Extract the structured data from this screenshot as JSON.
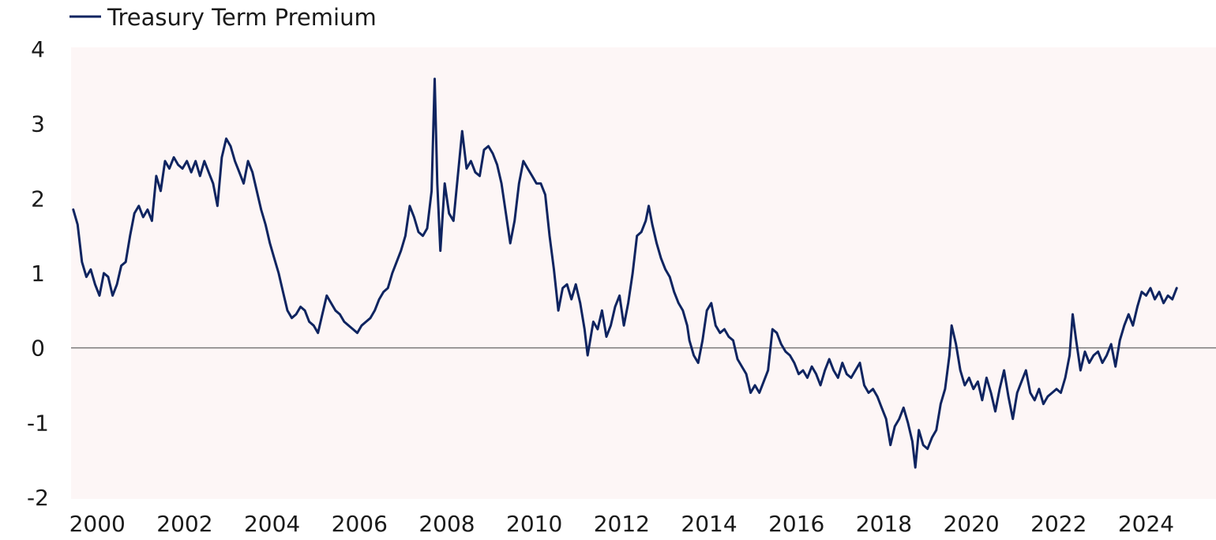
{
  "colors": {
    "line": "#0f2460",
    "plot_background": "#fdf6f6",
    "zero_line": "#7a7a7a",
    "text": "#1a1a1a"
  },
  "chart_data": {
    "type": "line",
    "title": "",
    "xlabel": "",
    "ylabel": "",
    "xlim": [
      1999.4,
      2025.6
    ],
    "ylim": [
      -2,
      4
    ],
    "xticks": [
      2000,
      2002,
      2004,
      2006,
      2008,
      2010,
      2012,
      2014,
      2016,
      2018,
      2020,
      2022,
      2024
    ],
    "yticks": [
      -2,
      -1,
      0,
      1,
      2,
      3,
      4
    ],
    "grid": false,
    "zero_line": true,
    "legend": {
      "position": "top-left"
    },
    "series": [
      {
        "name": "Treasury Term Premium",
        "points": [
          [
            1999.45,
            1.85
          ],
          [
            1999.55,
            1.65
          ],
          [
            1999.65,
            1.15
          ],
          [
            1999.75,
            0.95
          ],
          [
            1999.85,
            1.05
          ],
          [
            1999.95,
            0.85
          ],
          [
            2000.05,
            0.7
          ],
          [
            2000.15,
            1.0
          ],
          [
            2000.25,
            0.95
          ],
          [
            2000.35,
            0.7
          ],
          [
            2000.45,
            0.85
          ],
          [
            2000.55,
            1.1
          ],
          [
            2000.65,
            1.15
          ],
          [
            2000.75,
            1.5
          ],
          [
            2000.85,
            1.8
          ],
          [
            2000.95,
            1.9
          ],
          [
            2001.05,
            1.75
          ],
          [
            2001.15,
            1.85
          ],
          [
            2001.25,
            1.7
          ],
          [
            2001.35,
            2.3
          ],
          [
            2001.45,
            2.1
          ],
          [
            2001.55,
            2.5
          ],
          [
            2001.65,
            2.4
          ],
          [
            2001.75,
            2.55
          ],
          [
            2001.85,
            2.45
          ],
          [
            2001.95,
            2.4
          ],
          [
            2002.05,
            2.5
          ],
          [
            2002.15,
            2.35
          ],
          [
            2002.25,
            2.5
          ],
          [
            2002.35,
            2.3
          ],
          [
            2002.45,
            2.5
          ],
          [
            2002.55,
            2.35
          ],
          [
            2002.65,
            2.2
          ],
          [
            2002.75,
            1.9
          ],
          [
            2002.85,
            2.55
          ],
          [
            2002.95,
            2.8
          ],
          [
            2003.05,
            2.7
          ],
          [
            2003.15,
            2.5
          ],
          [
            2003.25,
            2.35
          ],
          [
            2003.35,
            2.2
          ],
          [
            2003.45,
            2.5
          ],
          [
            2003.55,
            2.35
          ],
          [
            2003.65,
            2.1
          ],
          [
            2003.75,
            1.85
          ],
          [
            2003.85,
            1.65
          ],
          [
            2003.95,
            1.4
          ],
          [
            2004.05,
            1.2
          ],
          [
            2004.15,
            1.0
          ],
          [
            2004.25,
            0.75
          ],
          [
            2004.35,
            0.5
          ],
          [
            2004.45,
            0.4
          ],
          [
            2004.55,
            0.45
          ],
          [
            2004.65,
            0.55
          ],
          [
            2004.75,
            0.5
          ],
          [
            2004.85,
            0.35
          ],
          [
            2004.95,
            0.3
          ],
          [
            2005.05,
            0.2
          ],
          [
            2005.15,
            0.45
          ],
          [
            2005.25,
            0.7
          ],
          [
            2005.35,
            0.6
          ],
          [
            2005.45,
            0.5
          ],
          [
            2005.55,
            0.45
          ],
          [
            2005.65,
            0.35
          ],
          [
            2005.75,
            0.3
          ],
          [
            2005.85,
            0.25
          ],
          [
            2005.95,
            0.2
          ],
          [
            2006.05,
            0.3
          ],
          [
            2006.15,
            0.35
          ],
          [
            2006.25,
            0.4
          ],
          [
            2006.35,
            0.5
          ],
          [
            2006.45,
            0.65
          ],
          [
            2006.55,
            0.75
          ],
          [
            2006.65,
            0.8
          ],
          [
            2006.75,
            1.0
          ],
          [
            2006.85,
            1.15
          ],
          [
            2006.95,
            1.3
          ],
          [
            2007.05,
            1.5
          ],
          [
            2007.15,
            1.9
          ],
          [
            2007.25,
            1.75
          ],
          [
            2007.35,
            1.55
          ],
          [
            2007.45,
            1.5
          ],
          [
            2007.55,
            1.6
          ],
          [
            2007.65,
            2.1
          ],
          [
            2007.72,
            3.6
          ],
          [
            2007.78,
            2.2
          ],
          [
            2007.85,
            1.3
          ],
          [
            2007.95,
            2.2
          ],
          [
            2008.05,
            1.8
          ],
          [
            2008.15,
            1.7
          ],
          [
            2008.25,
            2.3
          ],
          [
            2008.35,
            2.9
          ],
          [
            2008.45,
            2.4
          ],
          [
            2008.55,
            2.5
          ],
          [
            2008.65,
            2.35
          ],
          [
            2008.75,
            2.3
          ],
          [
            2008.85,
            2.65
          ],
          [
            2008.95,
            2.7
          ],
          [
            2009.05,
            2.6
          ],
          [
            2009.15,
            2.45
          ],
          [
            2009.25,
            2.2
          ],
          [
            2009.35,
            1.8
          ],
          [
            2009.45,
            1.4
          ],
          [
            2009.55,
            1.7
          ],
          [
            2009.65,
            2.2
          ],
          [
            2009.75,
            2.5
          ],
          [
            2009.85,
            2.4
          ],
          [
            2009.95,
            2.3
          ],
          [
            2010.05,
            2.2
          ],
          [
            2010.15,
            2.2
          ],
          [
            2010.25,
            2.05
          ],
          [
            2010.35,
            1.5
          ],
          [
            2010.45,
            1.05
          ],
          [
            2010.55,
            0.5
          ],
          [
            2010.65,
            0.8
          ],
          [
            2010.75,
            0.85
          ],
          [
            2010.85,
            0.65
          ],
          [
            2010.95,
            0.85
          ],
          [
            2011.05,
            0.6
          ],
          [
            2011.15,
            0.25
          ],
          [
            2011.22,
            -0.1
          ],
          [
            2011.35,
            0.35
          ],
          [
            2011.45,
            0.25
          ],
          [
            2011.55,
            0.5
          ],
          [
            2011.65,
            0.15
          ],
          [
            2011.75,
            0.3
          ],
          [
            2011.85,
            0.55
          ],
          [
            2011.95,
            0.7
          ],
          [
            2012.05,
            0.3
          ],
          [
            2012.15,
            0.6
          ],
          [
            2012.25,
            1.0
          ],
          [
            2012.35,
            1.5
          ],
          [
            2012.45,
            1.55
          ],
          [
            2012.55,
            1.7
          ],
          [
            2012.62,
            1.9
          ],
          [
            2012.7,
            1.65
          ],
          [
            2012.8,
            1.4
          ],
          [
            2012.9,
            1.2
          ],
          [
            2013.0,
            1.05
          ],
          [
            2013.1,
            0.95
          ],
          [
            2013.2,
            0.75
          ],
          [
            2013.3,
            0.6
          ],
          [
            2013.4,
            0.5
          ],
          [
            2013.5,
            0.3
          ],
          [
            2013.55,
            0.1
          ],
          [
            2013.65,
            -0.1
          ],
          [
            2013.75,
            -0.2
          ],
          [
            2013.85,
            0.1
          ],
          [
            2013.95,
            0.5
          ],
          [
            2014.05,
            0.6
          ],
          [
            2014.15,
            0.3
          ],
          [
            2014.25,
            0.2
          ],
          [
            2014.35,
            0.25
          ],
          [
            2014.45,
            0.15
          ],
          [
            2014.55,
            0.1
          ],
          [
            2014.65,
            -0.15
          ],
          [
            2014.75,
            -0.25
          ],
          [
            2014.85,
            -0.35
          ],
          [
            2014.95,
            -0.6
          ],
          [
            2015.05,
            -0.5
          ],
          [
            2015.15,
            -0.6
          ],
          [
            2015.25,
            -0.45
          ],
          [
            2015.35,
            -0.3
          ],
          [
            2015.45,
            0.25
          ],
          [
            2015.55,
            0.2
          ],
          [
            2015.65,
            0.05
          ],
          [
            2015.75,
            -0.05
          ],
          [
            2015.85,
            -0.1
          ],
          [
            2015.95,
            -0.2
          ],
          [
            2016.05,
            -0.35
          ],
          [
            2016.15,
            -0.3
          ],
          [
            2016.25,
            -0.4
          ],
          [
            2016.35,
            -0.25
          ],
          [
            2016.45,
            -0.35
          ],
          [
            2016.55,
            -0.5
          ],
          [
            2016.65,
            -0.3
          ],
          [
            2016.75,
            -0.15
          ],
          [
            2016.85,
            -0.3
          ],
          [
            2016.95,
            -0.4
          ],
          [
            2017.05,
            -0.2
          ],
          [
            2017.15,
            -0.35
          ],
          [
            2017.25,
            -0.4
          ],
          [
            2017.35,
            -0.3
          ],
          [
            2017.45,
            -0.2
          ],
          [
            2017.55,
            -0.5
          ],
          [
            2017.65,
            -0.6
          ],
          [
            2017.75,
            -0.55
          ],
          [
            2017.85,
            -0.65
          ],
          [
            2017.95,
            -0.8
          ],
          [
            2018.05,
            -0.95
          ],
          [
            2018.15,
            -1.3
          ],
          [
            2018.25,
            -1.05
          ],
          [
            2018.35,
            -0.95
          ],
          [
            2018.45,
            -0.8
          ],
          [
            2018.55,
            -1.0
          ],
          [
            2018.65,
            -1.25
          ],
          [
            2018.72,
            -1.6
          ],
          [
            2018.8,
            -1.1
          ],
          [
            2018.9,
            -1.3
          ],
          [
            2019.0,
            -1.35
          ],
          [
            2019.1,
            -1.2
          ],
          [
            2019.2,
            -1.1
          ],
          [
            2019.3,
            -0.75
          ],
          [
            2019.4,
            -0.55
          ],
          [
            2019.5,
            -0.1
          ],
          [
            2019.55,
            0.3
          ],
          [
            2019.65,
            0.05
          ],
          [
            2019.75,
            -0.3
          ],
          [
            2019.85,
            -0.5
          ],
          [
            2019.95,
            -0.4
          ],
          [
            2020.05,
            -0.55
          ],
          [
            2020.15,
            -0.45
          ],
          [
            2020.25,
            -0.7
          ],
          [
            2020.35,
            -0.4
          ],
          [
            2020.45,
            -0.6
          ],
          [
            2020.55,
            -0.85
          ],
          [
            2020.65,
            -0.55
          ],
          [
            2020.75,
            -0.3
          ],
          [
            2020.85,
            -0.65
          ],
          [
            2020.95,
            -0.95
          ],
          [
            2021.05,
            -0.6
          ],
          [
            2021.15,
            -0.45
          ],
          [
            2021.25,
            -0.3
          ],
          [
            2021.35,
            -0.6
          ],
          [
            2021.45,
            -0.7
          ],
          [
            2021.55,
            -0.55
          ],
          [
            2021.65,
            -0.75
          ],
          [
            2021.75,
            -0.65
          ],
          [
            2021.85,
            -0.6
          ],
          [
            2021.95,
            -0.55
          ],
          [
            2022.05,
            -0.6
          ],
          [
            2022.15,
            -0.4
          ],
          [
            2022.25,
            -0.1
          ],
          [
            2022.32,
            0.45
          ],
          [
            2022.4,
            0.1
          ],
          [
            2022.5,
            -0.3
          ],
          [
            2022.6,
            -0.05
          ],
          [
            2022.7,
            -0.2
          ],
          [
            2022.8,
            -0.1
          ],
          [
            2022.9,
            -0.05
          ],
          [
            2023.0,
            -0.2
          ],
          [
            2023.1,
            -0.1
          ],
          [
            2023.2,
            0.05
          ],
          [
            2023.3,
            -0.25
          ],
          [
            2023.4,
            0.1
          ],
          [
            2023.5,
            0.3
          ],
          [
            2023.6,
            0.45
          ],
          [
            2023.7,
            0.3
          ],
          [
            2023.8,
            0.55
          ],
          [
            2023.9,
            0.75
          ],
          [
            2024.0,
            0.7
          ],
          [
            2024.1,
            0.8
          ],
          [
            2024.2,
            0.65
          ],
          [
            2024.3,
            0.75
          ],
          [
            2024.4,
            0.6
          ],
          [
            2024.5,
            0.7
          ],
          [
            2024.6,
            0.65
          ],
          [
            2024.7,
            0.8
          ]
        ]
      }
    ]
  }
}
